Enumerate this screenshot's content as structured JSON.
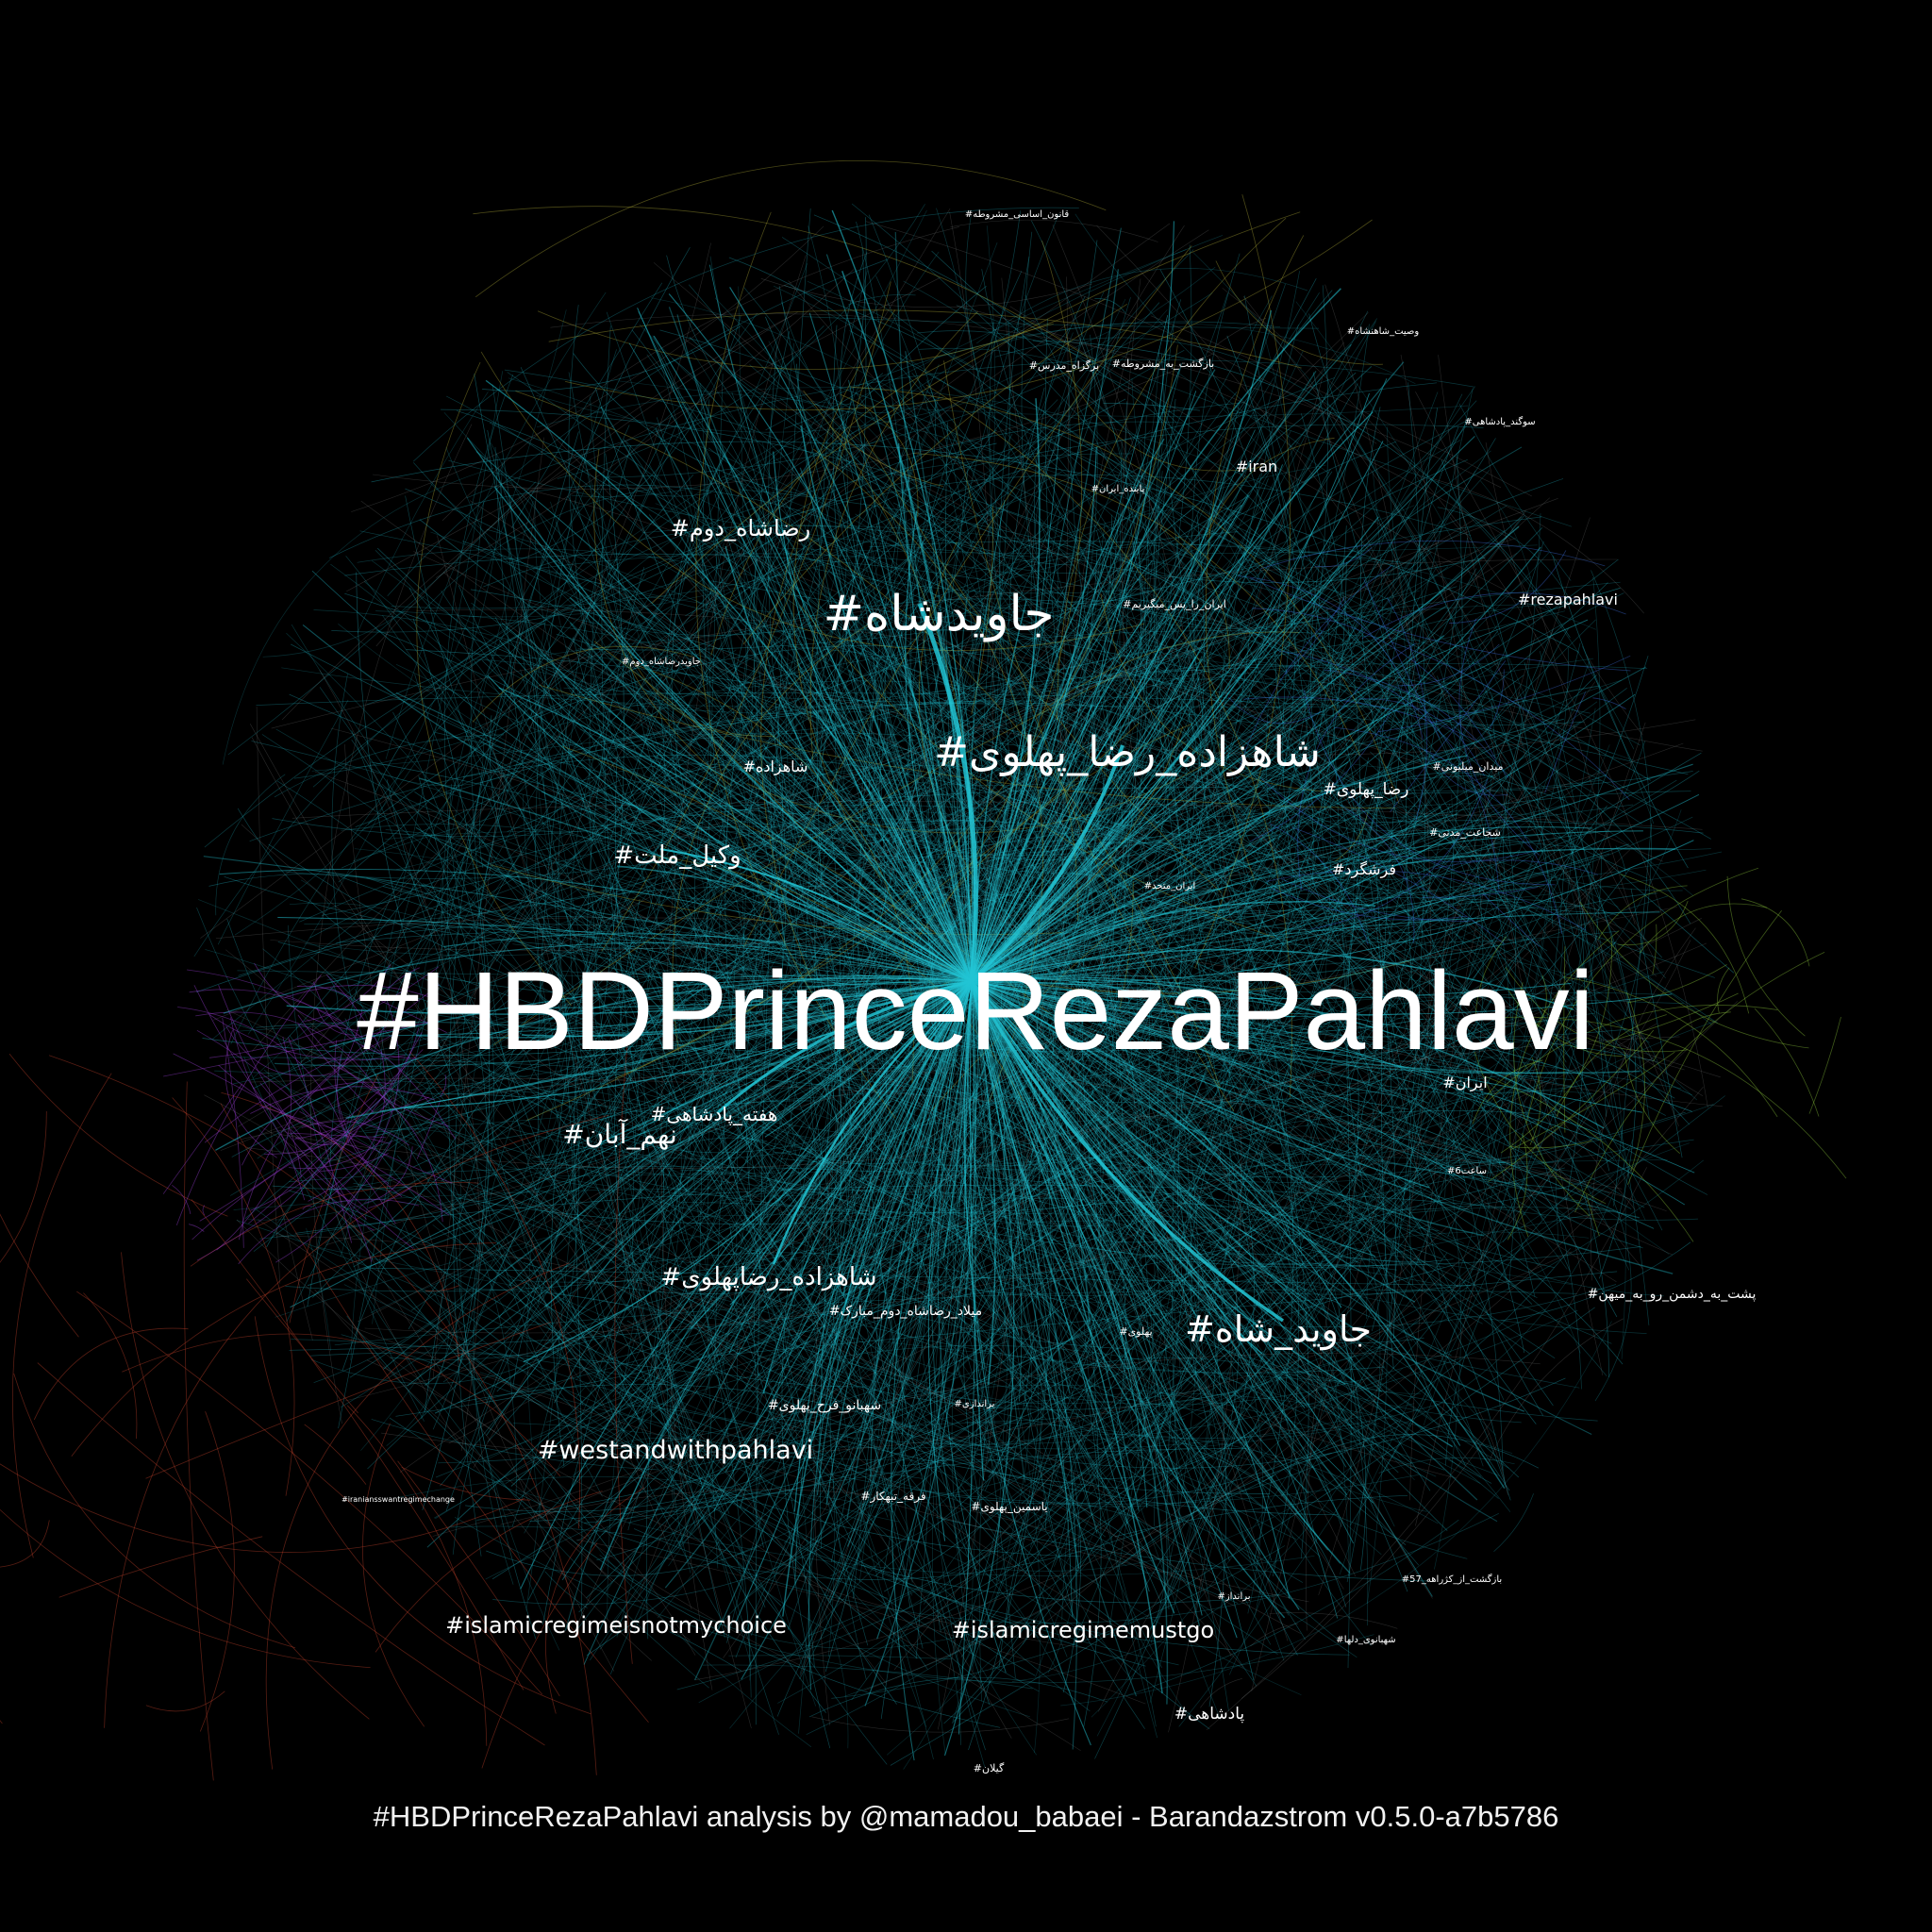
{
  "colors": {
    "background": "#000000",
    "edge_primary": "#1fb0c0",
    "edge_hub": "#22c4d4",
    "edge_olive": "#a5a032",
    "edge_red": "#c0412a",
    "edge_purple": "#9b3fd6",
    "edge_green": "#8ac43a",
    "edge_blue": "#3a6ad6",
    "label": "#ffffff"
  },
  "graph": {
    "hub": {
      "label": "#HBDPrinceRezaPahlavi"
    },
    "labels": [
      {
        "text": "#جاویدشاه",
        "tier": "large"
      },
      {
        "text": "#شاهزاده_رضا_پهلوی",
        "tier": "large"
      },
      {
        "text": "#جاوید_شاه",
        "tier": "large"
      },
      {
        "text": "#رضاشاه_دوم",
        "tier": "medium"
      },
      {
        "text": "#وکیل_ملت",
        "tier": "medium"
      },
      {
        "text": "#نهم_آبان",
        "tier": "medium"
      },
      {
        "text": "#هفته_پادشاهی",
        "tier": "medium"
      },
      {
        "text": "#شاهزاده_رضاپهلوی",
        "tier": "medium"
      },
      {
        "text": "#westandwithpahlavi",
        "tier": "medium"
      },
      {
        "text": "#islamicregimeisnotmychoice",
        "tier": "medium"
      },
      {
        "text": "#islamicregimemustgo",
        "tier": "medium"
      },
      {
        "text": "#شاهزاده",
        "tier": "small"
      },
      {
        "text": "#iran",
        "tier": "small"
      },
      {
        "text": "#rezapahlavi",
        "tier": "small"
      },
      {
        "text": "#رضا_پهلوی",
        "tier": "small"
      },
      {
        "text": "#فرشگرد",
        "tier": "small"
      },
      {
        "text": "#ایران",
        "tier": "small"
      },
      {
        "text": "#پادشاهی",
        "tier": "small"
      },
      {
        "text": "#میلاد_رضاشاه_دوم_مبارک",
        "tier": "small"
      },
      {
        "text": "#شهبانو_فرح_پهلوی",
        "tier": "small"
      },
      {
        "text": "#پشت_به_دشمن_رو_به_میهن",
        "tier": "small"
      },
      {
        "text": "#قانون_اساسی_مشروطه",
        "tier": "tiny"
      },
      {
        "text": "#بازگشت_به_مشروطه",
        "tier": "tiny"
      },
      {
        "text": "#برگزاه_مدرس",
        "tier": "tiny"
      },
      {
        "text": "#وصیت_شاهنشاه",
        "tier": "tiny"
      },
      {
        "text": "#سوگند_پادشاهی",
        "tier": "tiny"
      },
      {
        "text": "#پاینده_ایران",
        "tier": "tiny"
      },
      {
        "text": "#ایران_را_پس_میگیریم",
        "tier": "tiny"
      },
      {
        "text": "#میدان_میلیونی",
        "tier": "tiny"
      },
      {
        "text": "#شجاعت_مدنی",
        "tier": "tiny"
      },
      {
        "text": "#ایران_متحد",
        "tier": "tiny"
      },
      {
        "text": "#جاویدرضاشاه_دوم",
        "tier": "tiny"
      },
      {
        "text": "#ساعت6",
        "tier": "tiny"
      },
      {
        "text": "#پهلوی",
        "tier": "tiny"
      },
      {
        "text": "#فرقه_تبهکار",
        "tier": "tiny"
      },
      {
        "text": "#یاسمین_پهلوی",
        "tier": "tiny"
      },
      {
        "text": "#براندازی",
        "tier": "tiny"
      },
      {
        "text": "#برانداز",
        "tier": "tiny"
      },
      {
        "text": "#شهبانوی_دلها",
        "tier": "tiny"
      },
      {
        "text": "#بازگشت_از_کژراهه_57",
        "tier": "tiny"
      },
      {
        "text": "#گیلان",
        "tier": "tiny"
      },
      {
        "text": "#iraniansswantregimechange",
        "tier": "tiny"
      }
    ]
  },
  "footer": "#HBDPrinceRezaPahlavi analysis by @mamadou_babaei - Barandazstrom v0.5.0-a7b5786"
}
